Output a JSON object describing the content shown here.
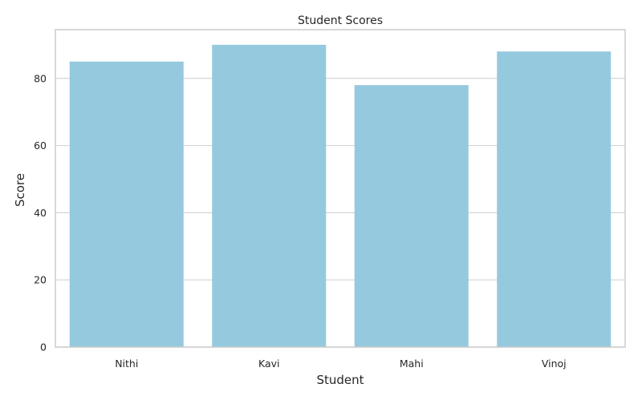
{
  "chart_data": {
    "type": "bar",
    "title": "Student Scores",
    "xlabel": "Student",
    "ylabel": "Score",
    "categories": [
      "Nithi",
      "Kavi",
      "Mahi",
      "Vinoj"
    ],
    "values": [
      85,
      90,
      78,
      88
    ],
    "ylim": [
      0,
      94.5
    ],
    "yticks": [
      0,
      20,
      40,
      60,
      80
    ],
    "grid": true,
    "bar_color": "#95c9de",
    "grid_color": "#d4d4d4",
    "spine_color": "#cccccc"
  }
}
